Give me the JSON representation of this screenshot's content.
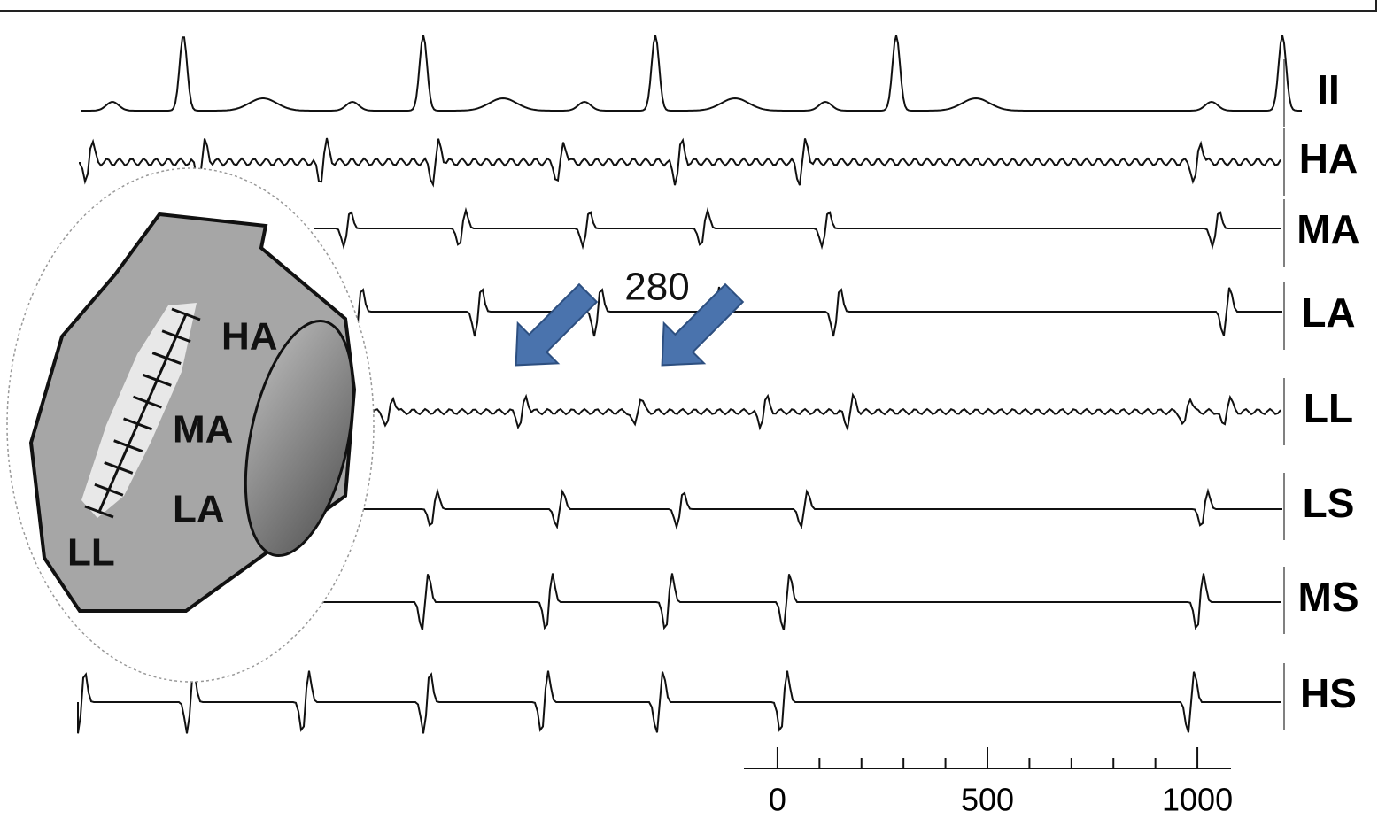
{
  "channels": [
    "II",
    "HA",
    "MA",
    "LA",
    "LL",
    "LS",
    "MS",
    "HS"
  ],
  "annotation": "280",
  "heart_diagram": {
    "labels": [
      "HA",
      "MA",
      "LA",
      "LL"
    ]
  },
  "scale_bar": {
    "xlim": [
      -80,
      1080
    ],
    "ticks": [
      0,
      500,
      1000
    ],
    "minor_ticks": [
      100,
      200,
      300,
      400,
      600,
      700,
      800,
      900
    ]
  }
}
